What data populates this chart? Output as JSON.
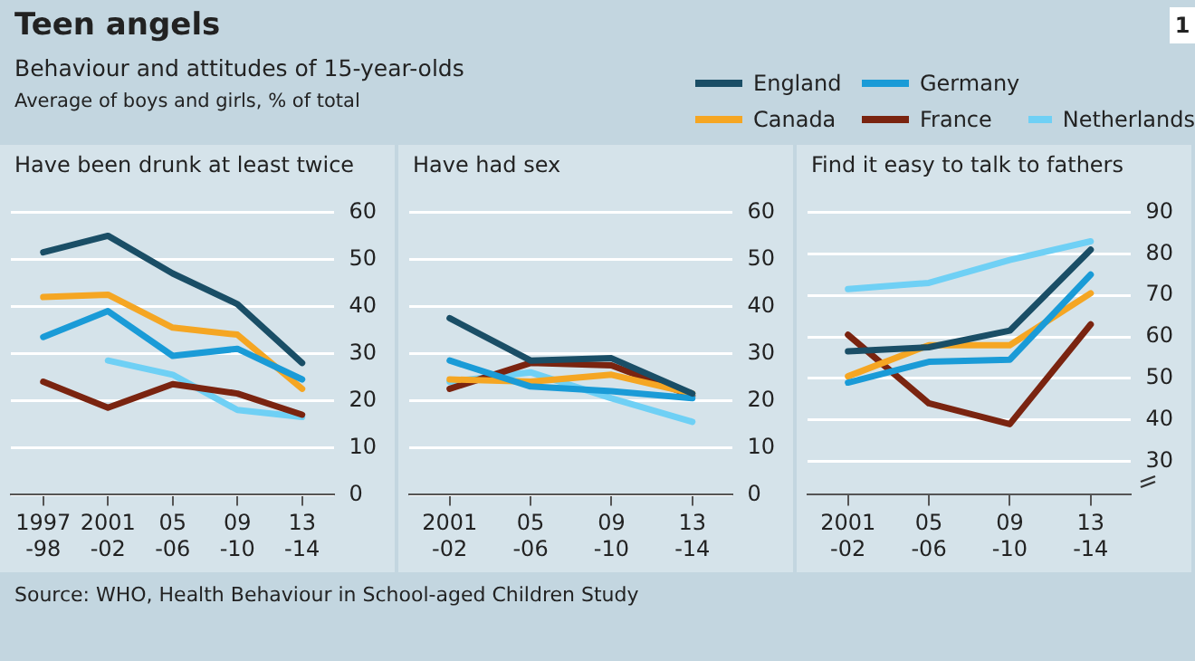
{
  "chart_data": [
    {
      "type": "line",
      "title": "Have been drunk at least twice",
      "categories": [
        "1997-98",
        "2001-02",
        "05-06",
        "09-10",
        "13-14"
      ],
      "ylim": [
        0,
        60
      ],
      "yticks": [
        0,
        10,
        20,
        30,
        40,
        50,
        60
      ],
      "grid": "y",
      "marker": "none",
      "legend": "top right",
      "annotations": [
        "Teen angels",
        "Behaviour and attitudes of 15-year-olds",
        "Average of boys and girls, % of total",
        "Source: WHO, Health Behaviour in School-aged Children Study",
        "1"
      ],
      "series": [
        {
          "name": "England",
          "color": "#1a4e66",
          "values": [
            51.5,
            55,
            47,
            40.5,
            28
          ]
        },
        {
          "name": "Germany",
          "color": "#1a9bd7",
          "values": [
            33.5,
            39,
            29.5,
            31,
            24.5
          ]
        },
        {
          "name": "Canada",
          "color": "#f5a623",
          "values": [
            42,
            42.5,
            35.5,
            34,
            22.5
          ]
        },
        {
          "name": "France",
          "color": "#7a2410",
          "values": [
            24,
            18.5,
            23.5,
            21.5,
            17
          ]
        },
        {
          "name": "Netherlands",
          "color": "#6fd0f5",
          "values": [
            null,
            28.5,
            25.5,
            18,
            16.5
          ]
        }
      ]
    },
    {
      "type": "line",
      "title": "Have had sex",
      "categories": [
        "2001-02",
        "05-06",
        "09-10",
        "13-14"
      ],
      "ylim": [
        0,
        60
      ],
      "yticks": [
        0,
        10,
        20,
        30,
        40,
        50,
        60
      ],
      "grid": "y",
      "marker": "none",
      "series": [
        {
          "color": "#1a4e66",
          "values": [
            37.5,
            28.5,
            29,
            21.5
          ]
        },
        {
          "color": "#1a9bd7",
          "values": [
            28.5,
            23,
            22,
            20.5
          ]
        },
        {
          "color": "#f5a623",
          "values": [
            24.5,
            24,
            25.5,
            21.5
          ]
        },
        {
          "color": "#7a2410",
          "values": [
            22.5,
            28,
            27.5,
            21
          ]
        },
        {
          "color": "#6fd0f5",
          "values": [
            24,
            26,
            20.5,
            15.5
          ]
        }
      ]
    },
    {
      "type": "line",
      "title": "Find it easy to talk to fathers",
      "categories": [
        "2001-02",
        "05-06",
        "09-10",
        "13-14"
      ],
      "ylim": [
        22,
        90
      ],
      "yticks": [
        30,
        40,
        50,
        60,
        70,
        80,
        90
      ],
      "grid": "y",
      "marker": "none",
      "series": [
        {
          "color": "#1a4e66",
          "values": [
            56.5,
            57.5,
            61.5,
            81
          ]
        },
        {
          "color": "#1a9bd7",
          "values": [
            49,
            54,
            54.5,
            75
          ]
        },
        {
          "color": "#f5a623",
          "values": [
            50.5,
            58,
            58,
            70.5
          ]
        },
        {
          "color": "#7a2410",
          "values": [
            60.5,
            44,
            39,
            63
          ]
        },
        {
          "color": "#6fd0f5",
          "values": [
            71.5,
            73,
            78.5,
            83
          ]
        }
      ]
    }
  ]
}
